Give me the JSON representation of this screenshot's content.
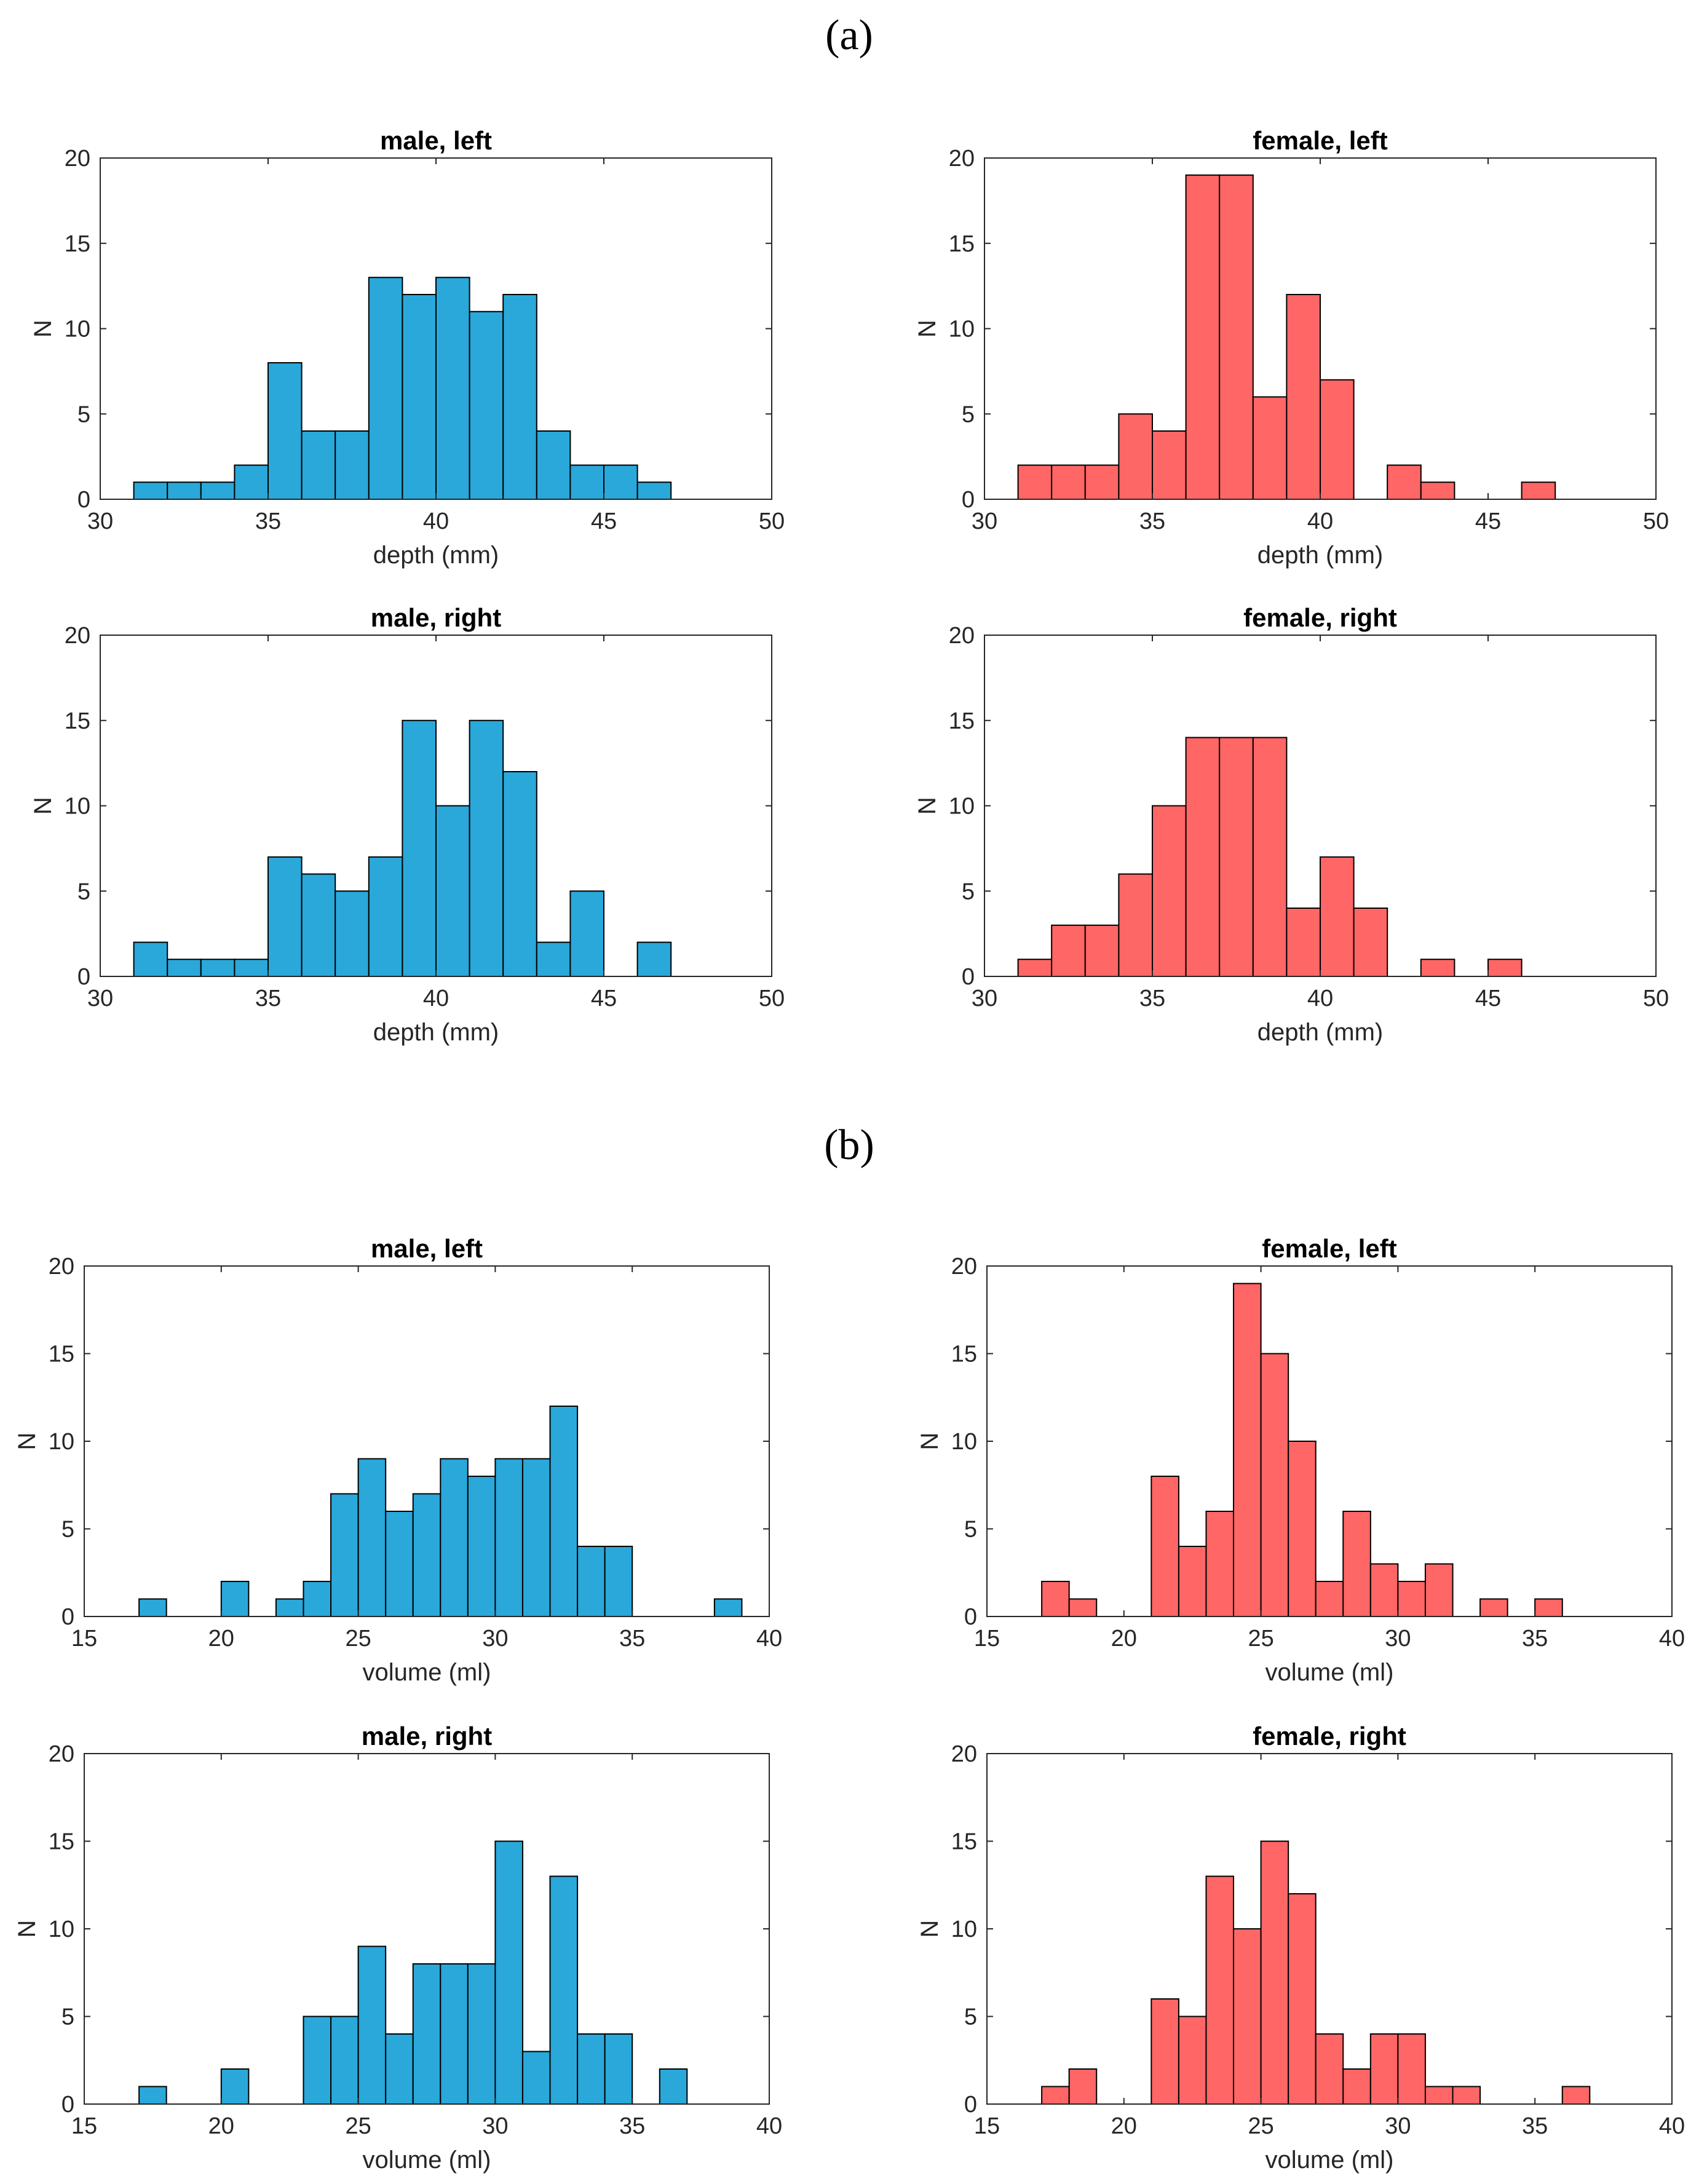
{
  "figure": {
    "panel_labels": [
      "(a)",
      "(b)"
    ],
    "colors": {
      "male": "#29A8D9",
      "female": "#FF6666",
      "edge": "#000000",
      "axis": "#262626"
    }
  },
  "chart_data": [
    {
      "type": "bar",
      "panel": "(a)",
      "group": "male",
      "title": "male, left",
      "xlabel": "depth (mm)",
      "ylabel": "N",
      "xlim": [
        30,
        50
      ],
      "ylim": [
        0,
        20
      ],
      "xticks": [
        30,
        35,
        40,
        45,
        50
      ],
      "yticks": [
        0,
        5,
        10,
        15,
        20
      ],
      "bin_start": 31,
      "bin_width": 1,
      "values": [
        1,
        1,
        1,
        2,
        8,
        4,
        4,
        13,
        12,
        13,
        11,
        12,
        4,
        2,
        2,
        1,
        0,
        0,
        0
      ]
    },
    {
      "type": "bar",
      "panel": "(a)",
      "group": "female",
      "title": "female, left",
      "xlabel": "depth (mm)",
      "ylabel": "N",
      "xlim": [
        30,
        50
      ],
      "ylim": [
        0,
        20
      ],
      "xticks": [
        30,
        35,
        40,
        45,
        50
      ],
      "yticks": [
        0,
        5,
        10,
        15,
        20
      ],
      "bin_start": 31,
      "bin_width": 1,
      "values": [
        2,
        2,
        2,
        5,
        4,
        19,
        19,
        6,
        12,
        7,
        0,
        2,
        1,
        0,
        0,
        1
      ]
    },
    {
      "type": "bar",
      "panel": "(a)",
      "group": "male",
      "title": "male, right",
      "xlabel": "depth (mm)",
      "ylabel": "N",
      "xlim": [
        30,
        50
      ],
      "ylim": [
        0,
        20
      ],
      "xticks": [
        30,
        35,
        40,
        45,
        50
      ],
      "yticks": [
        0,
        5,
        10,
        15,
        20
      ],
      "bin_start": 31,
      "bin_width": 1,
      "values": [
        2,
        1,
        1,
        1,
        7,
        6,
        5,
        7,
        15,
        10,
        15,
        12,
        2,
        5,
        0,
        2
      ]
    },
    {
      "type": "bar",
      "panel": "(a)",
      "group": "female",
      "title": "female, right",
      "xlabel": "depth (mm)",
      "ylabel": "N",
      "xlim": [
        30,
        50
      ],
      "ylim": [
        0,
        20
      ],
      "xticks": [
        30,
        35,
        40,
        45,
        50
      ],
      "yticks": [
        0,
        5,
        10,
        15,
        20
      ],
      "bin_start": 31,
      "bin_width": 1,
      "values": [
        1,
        3,
        3,
        6,
        10,
        14,
        14,
        14,
        4,
        7,
        4,
        0,
        1,
        0,
        1
      ]
    },
    {
      "type": "bar",
      "panel": "(b)",
      "group": "male",
      "title": "male, left",
      "xlabel": "volume (ml)",
      "ylabel": "N",
      "xlim": [
        15,
        40
      ],
      "ylim": [
        0,
        20
      ],
      "xticks": [
        15,
        20,
        25,
        30,
        35,
        40
      ],
      "yticks": [
        0,
        5,
        10,
        15,
        20
      ],
      "bin_start": 17,
      "bin_width": 1,
      "values": [
        1,
        0,
        0,
        2,
        0,
        1,
        2,
        7,
        9,
        6,
        7,
        9,
        8,
        9,
        9,
        12,
        4,
        4,
        0,
        0,
        0,
        1
      ]
    },
    {
      "type": "bar",
      "panel": "(b)",
      "group": "female",
      "title": "female, left",
      "xlabel": "volume (ml)",
      "ylabel": "N",
      "xlim": [
        15,
        40
      ],
      "ylim": [
        0,
        20
      ],
      "xticks": [
        15,
        20,
        25,
        30,
        35,
        40
      ],
      "yticks": [
        0,
        5,
        10,
        15,
        20
      ],
      "bin_start": 17,
      "bin_width": 1,
      "values": [
        2,
        1,
        0,
        0,
        8,
        4,
        6,
        19,
        15,
        10,
        2,
        6,
        3,
        2,
        3,
        0,
        1,
        0,
        1
      ]
    },
    {
      "type": "bar",
      "panel": "(b)",
      "group": "male",
      "title": "male, right",
      "xlabel": "volume (ml)",
      "ylabel": "N",
      "xlim": [
        15,
        40
      ],
      "ylim": [
        0,
        20
      ],
      "xticks": [
        15,
        20,
        25,
        30,
        35,
        40
      ],
      "yticks": [
        0,
        5,
        10,
        15,
        20
      ],
      "bin_start": 17,
      "bin_width": 1,
      "values": [
        1,
        0,
        0,
        2,
        0,
        0,
        5,
        5,
        9,
        4,
        8,
        8,
        8,
        15,
        3,
        13,
        4,
        4,
        0,
        2
      ]
    },
    {
      "type": "bar",
      "panel": "(b)",
      "group": "female",
      "title": "female, right",
      "xlabel": "volume (ml)",
      "ylabel": "N",
      "xlim": [
        15,
        40
      ],
      "ylim": [
        0,
        20
      ],
      "xticks": [
        15,
        20,
        25,
        30,
        35,
        40
      ],
      "yticks": [
        0,
        5,
        10,
        15,
        20
      ],
      "bin_start": 17,
      "bin_width": 1,
      "values": [
        1,
        2,
        0,
        0,
        6,
        5,
        13,
        10,
        15,
        12,
        4,
        2,
        4,
        4,
        1,
        1,
        0,
        0,
        0,
        1
      ]
    }
  ]
}
